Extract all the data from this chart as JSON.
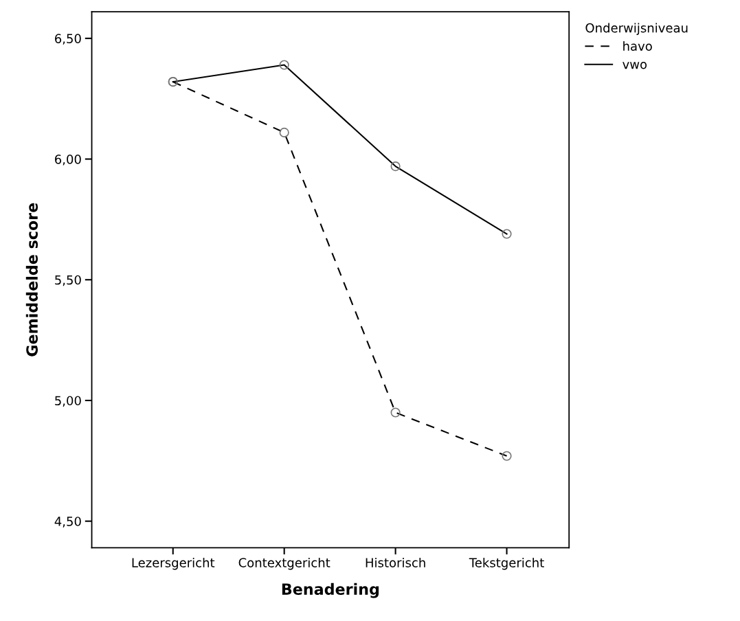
{
  "chart_data": {
    "type": "line",
    "xlabel": "Benadering",
    "ylabel": "Gemiddelde score",
    "categories": [
      "Lezersgericht",
      "Contextgericht",
      "Historisch",
      "Tekstgericht"
    ],
    "series": [
      {
        "name": "havo",
        "color": "#000000",
        "line_style": "dashed",
        "values": [
          6.32,
          6.11,
          4.95,
          4.77
        ]
      },
      {
        "name": "vwo",
        "color": "#000000",
        "line_style": "solid",
        "values": [
          6.32,
          6.39,
          5.97,
          5.69
        ]
      }
    ],
    "ylim": [
      4.39,
      6.61
    ],
    "yticks": [
      {
        "value": 4.5,
        "label": "4,50"
      },
      {
        "value": 5.0,
        "label": "5,00"
      },
      {
        "value": 5.5,
        "label": "5,50"
      },
      {
        "value": 6.0,
        "label": "6,00"
      },
      {
        "value": 6.5,
        "label": "6,50"
      }
    ],
    "legend": "right",
    "legend_title": "Onderwijsniveau",
    "marker": "circle",
    "grid": false
  }
}
